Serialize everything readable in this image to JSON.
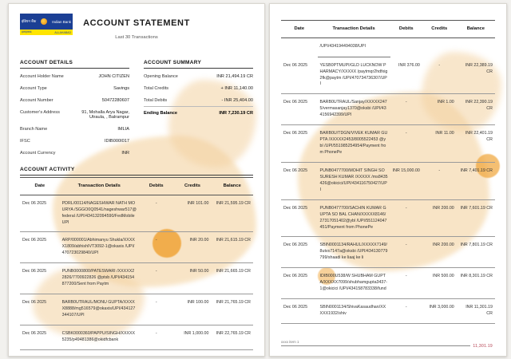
{
  "header": {
    "logo": {
      "name_hindi": "इंडियन बैंक",
      "name_english": "Indian Bank",
      "strip_left": "इलाहाबाद",
      "strip_right": "ALLAHABAD"
    },
    "title": "ACCOUNT STATEMENT",
    "subtitle": "Last 30 Transactions"
  },
  "account_details": {
    "title": "ACCOUNT DETAILS",
    "rows": [
      {
        "label": "Account Holder Name",
        "value": "JOHN CITIZEN"
      },
      {
        "label": "Account Type",
        "value": "Savings"
      },
      {
        "label": "Account Number",
        "value": "50472280607"
      },
      {
        "label": "Customer's Address",
        "value": "91, Mohalla Arya Nagar, Utraula, , Balrampur"
      },
      {
        "label": "Branch Name",
        "value": "IMLIA"
      },
      {
        "label": "IFSC",
        "value": "IDIB000I017"
      },
      {
        "label": "Account Currency",
        "value": "INR"
      }
    ]
  },
  "account_summary": {
    "title": "ACCOUNT SUMMARY",
    "rows": [
      {
        "label": "Opening Balance",
        "value": "INR 21,494.19 CR"
      },
      {
        "label": "Total Credits",
        "value": "+ INR 11,140.00"
      },
      {
        "label": "Total Debits",
        "value": "- INR 25,404.00"
      },
      {
        "label": "Ending Balance",
        "value": "INR 7,230.19 CR",
        "bold": true
      }
    ]
  },
  "activity": {
    "title": "ACCOUNT ACTIVITY",
    "columns": {
      "date": "Date",
      "details": "Transaction Details",
      "debits": "Debits",
      "credits": "Credits",
      "balance": "Balance"
    },
    "page1_rows": [
      {
        "date": "Dec 06 2025",
        "details": "PDRL/00114/NAGESHWAR NATH MOURYA /SGGO0Q0541/nageshwar517@federal /UPI/434132094590/FedMobile UPI",
        "debits": "-",
        "credits": "INR 101.00",
        "balance": "INR 21,595.19 CR"
      },
      {
        "date": "Dec 06 2025",
        "details": "ARP/000001/Abhimanyu Shukla/XXXXX1809/abhishIVT3092-1@okaxis /UPI/470723029840/UPI",
        "debits": "-",
        "credits": "INR 20.00",
        "balance": "INR 21,615.19 CR"
      },
      {
        "date": "Dec 06 2025",
        "details": "PUNB0000800/PATESWARI /XXXXX22826/7700922826 @ptsb /UPI/434154877200/Sent from Paytm",
        "debits": "-",
        "credits": "INR 50.00",
        "balance": "INR 21,665.19 CR"
      },
      {
        "date": "Dec 06 2025",
        "details": "BARB0UTRAUL/MONU GUPTA/XXXXX8888/mg516579@okaxis/UPI/434127344107/UPI",
        "debits": "-",
        "credits": "INR 100.00",
        "balance": "INR 21,765.19 CR"
      },
      {
        "date": "Dec 06 2025",
        "details": "CSBK0000360/PAPPU/SINGH/XXXXX5235/p49481386@okidfcbank",
        "debits": "-",
        "credits": "INR 1,000.00",
        "balance": "INR 22,765.19 CR"
      }
    ],
    "page2_carryover": {
      "date": "",
      "details": "/UPI/434194494038/UPI",
      "debits": "",
      "credits": "",
      "balance": ""
    },
    "page2_rows": [
      {
        "date": "Dec 06 2025",
        "details": "YESB0PTMUPI/GLD LUCKNOW PHARMACY/XXXXX /paytmqr2hdfxig2fk@paytm /UPI/470734736307/UPI",
        "debits": "INR 376.00",
        "credits": "-",
        "balance": "INR 22,389.19 CR"
      },
      {
        "date": "Dec 06 2025",
        "details": "BARB0UTRAUL/Sanjay/XXXXX2475/vermasanjay1370@oksbi /UPI/434156942399/UPI",
        "debits": "-",
        "credits": "INR 1.00",
        "balance": "INR 22,390.19 CR"
      },
      {
        "date": "Dec 06 2025",
        "details": "BARB0U/TDGN/VIVEK KUMAR GUPTA /XXXXX2453/8005522453 @ybl /UPI/551985254954/Payment from PhonePe",
        "debits": "-",
        "credits": "INR 11.00",
        "balance": "INR 22,401.19 CR"
      },
      {
        "date": "Dec 06 2025",
        "details": "PUNB0477700/MOHIT SINGH SO SURESH KUMAR /XXXXX /ms8435426@okicici/UPI/434116750427/UPI",
        "debits": "INR 15,000.00",
        "credits": "-",
        "balance": "INR 7,401.19 CR"
      },
      {
        "date": "Dec 06 2025",
        "details": "PUNB0477700/SACHIN KUMAR GUPTA SO BAL CHAN/XXXXX8146/27317051402@ybl /UPI/551124047451/Payment from PhonePe",
        "debits": "-",
        "credits": "INR 200.00",
        "balance": "INR 7,601.19 CR"
      },
      {
        "date": "Dec 06 2025",
        "details": "SBIN0001134/RAHUL/XXXXX7149/8utvs7147a@oksbi /UPI/434130779799/shaadi ke liaaj ke li",
        "debits": "-",
        "credits": "INR 200.00",
        "balance": "INR 7,801.19 CR"
      },
      {
        "date": "Dec 06 2025",
        "details": "IDIB000U538/W SHUBHAM GUPTA/XXXXX7099/shubhamgupta3437-1@okicici /UPI/434158783338/fund",
        "debits": "-",
        "credits": "INR 500.00",
        "balance": "INR 8,301.19 CR"
      },
      {
        "date": "Dec 06 2025",
        "details": "SBIN0001134/ShivaKasaudhan/XXXXX1932/shiv",
        "debits": "-",
        "credits": "INR 3,000.00",
        "balance": "INR 11,301.19 CR"
      }
    ]
  },
  "footer": {
    "left": "xxxx item 1",
    "right": "11,301.19"
  }
}
